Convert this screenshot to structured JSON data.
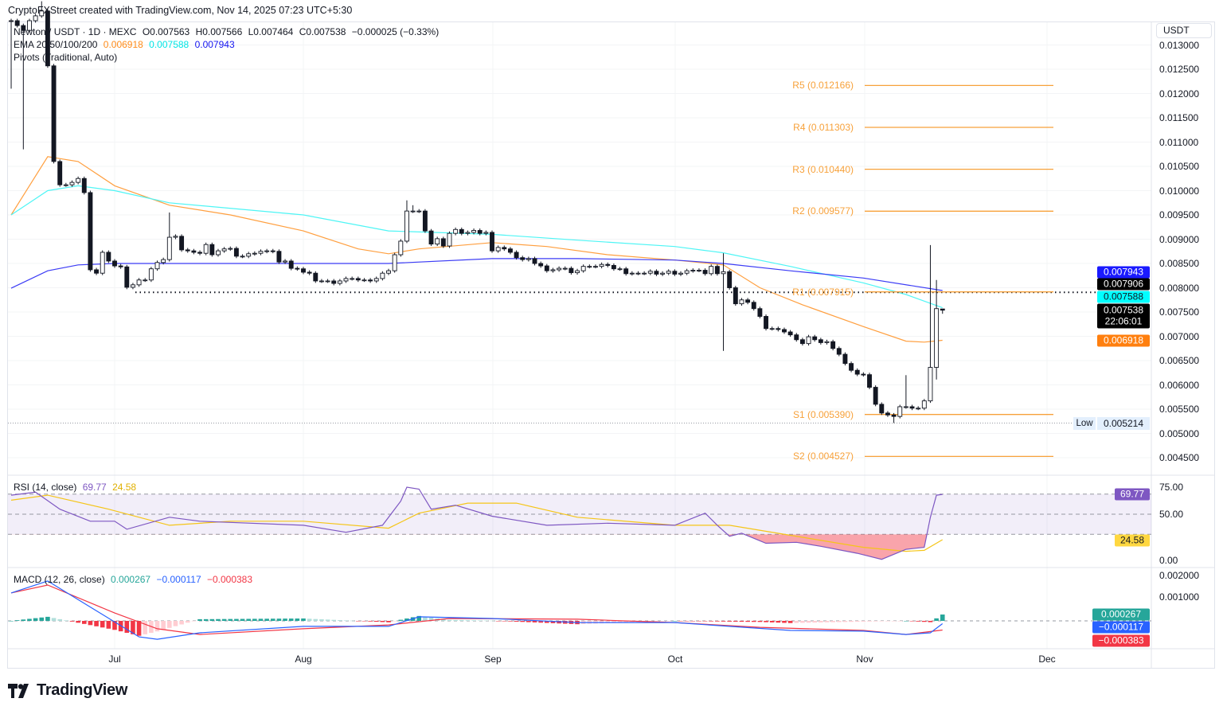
{
  "credit": "CryptoFXStreet created with TradingView.com, Nov 14, 2025 07:23 UTC+5:30",
  "header": {
    "symbol": "Newton / USDT · 1D · MEXC",
    "open": "O0.007563",
    "high": "H0.007566",
    "low": "L0.007464",
    "close": "C0.007538",
    "change": "−0.000025 (−0.33%)",
    "ema_label": "EMA 20/50/100/200",
    "ema_values": [
      "0.006918",
      "0.007588",
      "0.007943"
    ],
    "pivots_label": "Pivots (Traditional, Auto)"
  },
  "currency_button": "USDT",
  "colors": {
    "ema20": "#ff9f3f",
    "ema100": "#4ef5f5",
    "ema200": "#3b3bf5",
    "pivot": "#f7a13a",
    "rsi": "#7e57c2",
    "rsi_ma": "#f5c518",
    "macd": "#2962ff",
    "signal": "#f23645",
    "hist_up": "#26a69a",
    "hist_down": "#f23645"
  },
  "price_axis": {
    "ticks": [
      "0.013000",
      "0.012500",
      "0.012000",
      "0.011500",
      "0.011000",
      "0.010500",
      "0.010000",
      "0.009500",
      "0.009000",
      "0.008500",
      "0.008000",
      "0.007500",
      "0.007000",
      "0.006500",
      "0.006000",
      "0.005500",
      "0.005000",
      "0.004500"
    ]
  },
  "price_labels": {
    "ema200": "0.007943",
    "hline": "0.007906",
    "ema100": "0.007588",
    "last": "0.007538",
    "countdown": "22:06:01",
    "ema20": "0.006918",
    "low_tag": "Low",
    "low_value": "0.005214"
  },
  "pivots": [
    {
      "label": "R5 (0.012166)",
      "value": 0.012166
    },
    {
      "label": "R4 (0.011303)",
      "value": 0.011303
    },
    {
      "label": "R3 (0.010440)",
      "value": 0.01044
    },
    {
      "label": "R2 (0.009577)",
      "value": 0.009577
    },
    {
      "label": "R1 (0.007915)",
      "value": 0.007915
    },
    {
      "label": "S1 (0.005390)",
      "value": 0.00539
    },
    {
      "label": "S2 (0.004527)",
      "value": 0.004527
    }
  ],
  "date_axis": [
    "Jul",
    "Aug",
    "Sep",
    "Oct",
    "Nov",
    "Dec"
  ],
  "rsi": {
    "label": "RSI (14, close)",
    "value": "69.77",
    "ma_value": "24.58",
    "ticks": [
      "75.00",
      "50.00",
      "0.00"
    ]
  },
  "macd": {
    "label": "MACD (12, 26, close)",
    "hist": "0.000267",
    "macd": "−0.000117",
    "signal": "−0.000383",
    "ticks": [
      "0.002000",
      "0.001000"
    ]
  },
  "brand": "TradingView",
  "chart_data": {
    "type": "candlestick",
    "first_date": "2025-06-14",
    "closes": [
      0.0135,
      0.0134,
      0.0133,
      0.0135,
      0.0136,
      0.0137,
      0.01257,
      0.0106,
      0.01012,
      0.01012,
      0.01017,
      0.01025,
      0.00996,
      0.00837,
      0.0083,
      0.00873,
      0.00855,
      0.00845,
      0.00843,
      0.00801,
      0.00806,
      0.00816,
      0.00816,
      0.00839,
      0.00852,
      0.00858,
      0.00904,
      0.00906,
      0.00878,
      0.00876,
      0.00873,
      0.00871,
      0.00889,
      0.00868,
      0.00876,
      0.0088,
      0.00881,
      0.00865,
      0.00865,
      0.0087,
      0.00871,
      0.00875,
      0.00876,
      0.00875,
      0.00853,
      0.00855,
      0.0084,
      0.00839,
      0.00832,
      0.0083,
      0.00814,
      0.00814,
      0.00814,
      0.00809,
      0.00814,
      0.00819,
      0.00819,
      0.00816,
      0.00816,
      0.00814,
      0.00819,
      0.0083,
      0.00835,
      0.00868,
      0.00896,
      0.00958,
      0.00958,
      0.00958,
      0.00917,
      0.0089,
      0.00901,
      0.00886,
      0.00912,
      0.0092,
      0.00912,
      0.00914,
      0.00918,
      0.00912,
      0.00914,
      0.00876,
      0.00883,
      0.0088,
      0.00873,
      0.00862,
      0.00858,
      0.0086,
      0.0085,
      0.00845,
      0.00835,
      0.00837,
      0.0084,
      0.0084,
      0.00831,
      0.00835,
      0.00844,
      0.00844,
      0.00844,
      0.00848,
      0.00846,
      0.00839,
      0.00839,
      0.00829,
      0.0083,
      0.0083,
      0.0083,
      0.00834,
      0.00828,
      0.0083,
      0.00834,
      0.00828,
      0.0083,
      0.00835,
      0.00836,
      0.00836,
      0.00829,
      0.00844,
      0.00829,
      0.00833,
      0.008,
      0.00767,
      0.00775,
      0.0077,
      0.00757,
      0.00741,
      0.00716,
      0.00716,
      0.00714,
      0.00709,
      0.00703,
      0.00693,
      0.00685,
      0.00699,
      0.00693,
      0.00687,
      0.00689,
      0.00675,
      0.00663,
      0.00644,
      0.0063,
      0.00622,
      0.00621,
      0.00595,
      0.0056,
      0.00542,
      0.00538,
      0.00535,
      0.00555,
      0.00555,
      0.00552,
      0.00552,
      0.00567,
      0.00636,
      0.00757,
      0.007538
    ],
    "wick_extremes": [
      {
        "date": "2025-06-14",
        "low": 0.0121
      },
      {
        "date": "2025-06-16",
        "low": 0.01085
      },
      {
        "date": "2025-06-19",
        "high": 0.0139
      },
      {
        "date": "2025-07-10",
        "high": 0.00955
      },
      {
        "date": "2025-08-18",
        "high": 0.0098
      },
      {
        "date": "2025-08-19",
        "high": 0.0097
      },
      {
        "date": "2025-10-09",
        "high": 0.00871,
        "low": 0.0067
      },
      {
        "date": "2025-11-06",
        "low": 0.005214
      },
      {
        "date": "2025-11-08",
        "high": 0.0062
      },
      {
        "date": "2025-11-12",
        "high": 0.00888
      },
      {
        "date": "2025-11-13",
        "high": 0.00816,
        "low": 0.00611
      },
      {
        "date": "2025-11-14",
        "open": 0.007563,
        "high": 0.007566,
        "low": 0.007464
      }
    ],
    "hline": 0.007906,
    "low_line": 0.005214,
    "ema20": [
      [
        "2025-06-14",
        0.0095
      ],
      [
        "2025-06-20",
        0.0107
      ],
      [
        "2025-06-25",
        0.0106
      ],
      [
        "2025-07-01",
        0.0101
      ],
      [
        "2025-07-10",
        0.0097
      ],
      [
        "2025-07-20",
        0.0095
      ],
      [
        "2025-08-01",
        0.00917
      ],
      [
        "2025-08-10",
        0.0088
      ],
      [
        "2025-08-15",
        0.0087
      ],
      [
        "2025-08-20",
        0.0088
      ],
      [
        "2025-09-01",
        0.00893
      ],
      [
        "2025-09-10",
        0.00885
      ],
      [
        "2025-09-20",
        0.00868
      ],
      [
        "2025-10-01",
        0.00857
      ],
      [
        "2025-10-09",
        0.00847
      ],
      [
        "2025-10-15",
        0.008
      ],
      [
        "2025-10-22",
        0.00765
      ],
      [
        "2025-11-01",
        0.0072
      ],
      [
        "2025-11-08",
        0.0069
      ],
      [
        "2025-11-11",
        0.00688
      ],
      [
        "2025-11-14",
        0.006918
      ]
    ],
    "ema100": [
      [
        "2025-06-14",
        0.0095
      ],
      [
        "2025-06-20",
        0.01
      ],
      [
        "2025-06-25",
        0.0101
      ],
      [
        "2025-07-01",
        0.01
      ],
      [
        "2025-07-10",
        0.00975
      ],
      [
        "2025-08-01",
        0.0095
      ],
      [
        "2025-08-15",
        0.00917
      ],
      [
        "2025-09-01",
        0.0091
      ],
      [
        "2025-09-15",
        0.00898
      ],
      [
        "2025-10-01",
        0.00885
      ],
      [
        "2025-10-09",
        0.00872
      ],
      [
        "2025-10-20",
        0.00844
      ],
      [
        "2025-11-01",
        0.0081
      ],
      [
        "2025-11-08",
        0.00786
      ],
      [
        "2025-11-14",
        0.007588
      ]
    ],
    "ema200": [
      [
        "2025-06-14",
        0.00799
      ],
      [
        "2025-06-20",
        0.00835
      ],
      [
        "2025-06-25",
        0.00847
      ],
      [
        "2025-07-01",
        0.0085
      ],
      [
        "2025-08-01",
        0.0085
      ],
      [
        "2025-08-15",
        0.0085
      ],
      [
        "2025-09-01",
        0.0086
      ],
      [
        "2025-09-15",
        0.0086
      ],
      [
        "2025-10-01",
        0.00857
      ],
      [
        "2025-10-09",
        0.0085
      ],
      [
        "2025-10-20",
        0.00835
      ],
      [
        "2025-11-01",
        0.0082
      ],
      [
        "2025-11-14",
        0.007943
      ]
    ],
    "rsi_series": [
      [
        "2025-06-14",
        69
      ],
      [
        "2025-06-18",
        72
      ],
      [
        "2025-06-22",
        55
      ],
      [
        "2025-06-27",
        43
      ],
      [
        "2025-07-01",
        43
      ],
      [
        "2025-07-03",
        35
      ],
      [
        "2025-07-10",
        47
      ],
      [
        "2025-07-15",
        43
      ],
      [
        "2025-08-01",
        39
      ],
      [
        "2025-08-08",
        32
      ],
      [
        "2025-08-14",
        39
      ],
      [
        "2025-08-17",
        63
      ],
      [
        "2025-08-18",
        77
      ],
      [
        "2025-08-20",
        75
      ],
      [
        "2025-08-22",
        55
      ],
      [
        "2025-08-26",
        59
      ],
      [
        "2025-09-01",
        48
      ],
      [
        "2025-09-10",
        39
      ],
      [
        "2025-09-20",
        41
      ],
      [
        "2025-10-01",
        39
      ],
      [
        "2025-10-06",
        51
      ],
      [
        "2025-10-08",
        39
      ],
      [
        "2025-10-10",
        28
      ],
      [
        "2025-10-12",
        31
      ],
      [
        "2025-10-16",
        21
      ],
      [
        "2025-10-21",
        22
      ],
      [
        "2025-10-25",
        18
      ],
      [
        "2025-10-31",
        11
      ],
      [
        "2025-11-04",
        5
      ],
      [
        "2025-11-08",
        15
      ],
      [
        "2025-11-11",
        17
      ],
      [
        "2025-11-12",
        47
      ],
      [
        "2025-11-13",
        69
      ],
      [
        "2025-11-14",
        69.77
      ]
    ],
    "rsi_ma_series": [
      [
        "2025-06-14",
        64
      ],
      [
        "2025-06-20",
        69
      ],
      [
        "2025-06-30",
        55
      ],
      [
        "2025-07-10",
        39
      ],
      [
        "2025-07-20",
        43
      ],
      [
        "2025-08-01",
        43
      ],
      [
        "2025-08-15",
        36
      ],
      [
        "2025-08-20",
        51
      ],
      [
        "2025-08-28",
        61
      ],
      [
        "2025-09-05",
        61
      ],
      [
        "2025-09-15",
        47
      ],
      [
        "2025-10-01",
        39
      ],
      [
        "2025-10-10",
        39
      ],
      [
        "2025-10-20",
        29
      ],
      [
        "2025-11-01",
        17
      ],
      [
        "2025-11-08",
        13
      ],
      [
        "2025-11-11",
        14
      ],
      [
        "2025-11-14",
        24.58
      ]
    ],
    "rsi_bands": [
      70,
      50,
      30
    ],
    "macd_series": [
      [
        "2025-06-14",
        0.00117
      ],
      [
        "2025-06-20",
        0.00167
      ],
      [
        "2025-07-05",
        -0.00067
      ],
      [
        "2025-07-08",
        -0.00077
      ],
      [
        "2025-07-15",
        -0.0005
      ],
      [
        "2025-08-01",
        -0.00023
      ],
      [
        "2025-08-15",
        -0.00023
      ],
      [
        "2025-08-20",
        0.00017
      ],
      [
        "2025-09-01",
        0.0001
      ],
      [
        "2025-09-15",
        -7e-05
      ],
      [
        "2025-10-01",
        -7e-05
      ],
      [
        "2025-10-10",
        -0.00023
      ],
      [
        "2025-10-20",
        -0.0004
      ],
      [
        "2025-11-01",
        -0.00043
      ],
      [
        "2025-11-08",
        -0.00057
      ],
      [
        "2025-11-12",
        -0.0005
      ],
      [
        "2025-11-14",
        -0.000117
      ]
    ],
    "signal_series": [
      [
        "2025-06-14",
        0.00117
      ],
      [
        "2025-06-20",
        0.0015
      ],
      [
        "2025-07-01",
        0.00033
      ],
      [
        "2025-07-08",
        -0.00033
      ],
      [
        "2025-07-15",
        -0.00057
      ],
      [
        "2025-08-01",
        -0.00033
      ],
      [
        "2025-08-15",
        -0.00017
      ],
      [
        "2025-08-25",
        0.0001
      ],
      [
        "2025-09-15",
        7e-05
      ],
      [
        "2025-10-01",
        -7e-05
      ],
      [
        "2025-10-15",
        -0.00027
      ],
      [
        "2025-11-01",
        -0.0004
      ],
      [
        "2025-11-08",
        -0.00057
      ],
      [
        "2025-11-14",
        -0.000383
      ]
    ]
  }
}
